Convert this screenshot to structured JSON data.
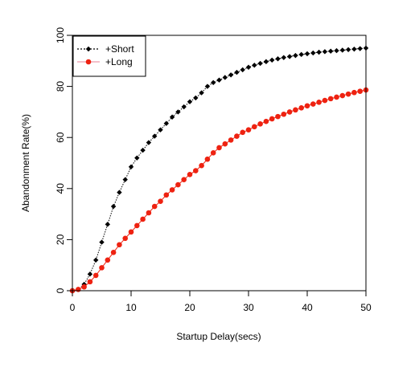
{
  "chart_data": {
    "type": "line",
    "title": "",
    "xlabel": "Startup Delay(secs)",
    "ylabel": "Abandonment Rate(%)",
    "xlim": [
      0,
      50
    ],
    "ylim": [
      0,
      100
    ],
    "xticks": [
      0,
      10,
      20,
      30,
      40,
      50
    ],
    "yticks": [
      0,
      20,
      40,
      60,
      80,
      100
    ],
    "grid": false,
    "legend": {
      "position": "top-left"
    },
    "series": [
      {
        "name": "+Short",
        "color": "#000000",
        "marker": "diamond",
        "line_style": "dotted",
        "x": [
          0,
          1,
          2,
          3,
          4,
          5,
          6,
          7,
          8,
          9,
          10,
          11,
          12,
          13,
          14,
          15,
          16,
          17,
          18,
          19,
          20,
          21,
          22,
          23,
          24,
          25,
          26,
          27,
          28,
          29,
          30,
          31,
          32,
          33,
          34,
          35,
          36,
          37,
          38,
          39,
          40,
          41,
          42,
          43,
          44,
          45,
          46,
          47,
          48,
          49,
          50
        ],
        "y": [
          0,
          0.5,
          2.5,
          6.5,
          12,
          19,
          26,
          33,
          38.5,
          43.5,
          48.5,
          52,
          55,
          58,
          60.5,
          63,
          65.5,
          68,
          70,
          72,
          74,
          75.5,
          77.5,
          80,
          81.5,
          82.5,
          83.5,
          84.5,
          85.5,
          86.5,
          87.5,
          88.3,
          89,
          89.7,
          90.3,
          90.8,
          91.3,
          91.7,
          92.1,
          92.5,
          92.8,
          93.1,
          93.4,
          93.6,
          93.8,
          94,
          94.2,
          94.4,
          94.6,
          94.8,
          95
        ]
      },
      {
        "name": "+Long",
        "color": "#ee2211",
        "marker": "circle",
        "line_style": "solid",
        "x": [
          0,
          1,
          2,
          3,
          4,
          5,
          6,
          7,
          8,
          9,
          10,
          11,
          12,
          13,
          14,
          15,
          16,
          17,
          18,
          19,
          20,
          21,
          22,
          23,
          24,
          25,
          26,
          27,
          28,
          29,
          30,
          31,
          32,
          33,
          34,
          35,
          36,
          37,
          38,
          39,
          40,
          41,
          42,
          43,
          44,
          45,
          46,
          47,
          48,
          49,
          50
        ],
        "y": [
          0,
          0.5,
          1.5,
          3.5,
          6,
          9,
          12,
          15,
          18,
          20.5,
          23,
          25.5,
          28,
          30.5,
          33,
          35,
          37.5,
          39.5,
          41.5,
          43.5,
          45.5,
          47,
          49,
          51.5,
          54,
          56,
          57.5,
          59,
          60.5,
          62,
          63,
          64.2,
          65.3,
          66.3,
          67.3,
          68.2,
          69.1,
          70,
          70.8,
          71.6,
          72.4,
          73.1,
          73.8,
          74.5,
          75.2,
          75.8,
          76.4,
          77,
          77.6,
          78.1,
          78.6
        ]
      }
    ]
  }
}
